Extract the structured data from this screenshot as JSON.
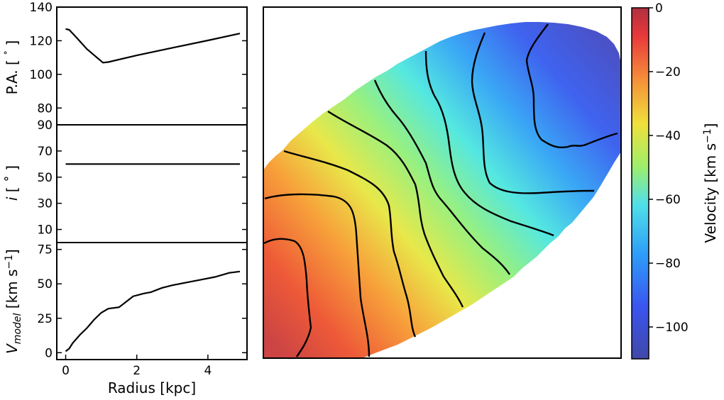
{
  "chart_data": [
    {
      "type": "line",
      "panel": "position-angle",
      "ylabel": "P.A. [ ˚ ]",
      "ylabel_main": "P.A. [ ",
      "ylabel_deg": "˚",
      "ylabel_close": " ]",
      "ylim": [
        70,
        140
      ],
      "yticks": [
        80,
        100,
        120,
        140
      ],
      "xlim": [
        -0.25,
        5.1
      ],
      "series": [
        {
          "x": [
            0.0,
            0.1,
            0.3,
            0.6,
            1.05,
            1.2,
            2.0,
            3.0,
            4.0,
            4.9
          ],
          "y": [
            127,
            126.5,
            122,
            115,
            107,
            107.3,
            111.3,
            115.8,
            120.2,
            124.3
          ]
        }
      ]
    },
    {
      "type": "line",
      "panel": "inclination",
      "ylabel_main": "i",
      "ylabel_rest": " [ ˚ ]",
      "ylim": [
        0,
        90
      ],
      "yticks": [
        10,
        30,
        50,
        70,
        90
      ],
      "xlim": [
        -0.25,
        5.1
      ],
      "series": [
        {
          "x": [
            0.0,
            4.9
          ],
          "y": [
            60,
            60
          ]
        }
      ]
    },
    {
      "type": "line",
      "panel": "rotation-curve",
      "ylabel_v": "V",
      "ylabel_sub": "model",
      "ylabel_units": " [km s",
      "ylabel_sup": "−1",
      "ylabel_close": "]",
      "xlabel": "Radius [kpc]",
      "ylim": [
        -5,
        80
      ],
      "yticks": [
        0,
        25,
        50,
        75
      ],
      "xticks": [
        0,
        2,
        4
      ],
      "xlim": [
        -0.25,
        5.1
      ],
      "series": [
        {
          "x": [
            0.0,
            0.1,
            0.2,
            0.4,
            0.6,
            0.8,
            1.0,
            1.2,
            1.5,
            1.7,
            1.9,
            2.2,
            2.4,
            2.7,
            3.0,
            3.4,
            3.8,
            4.2,
            4.6,
            4.9
          ],
          "y": [
            1,
            3,
            7,
            13,
            18,
            24,
            29,
            32,
            33,
            37,
            41,
            43,
            44,
            47,
            49,
            51,
            53,
            55,
            58,
            59
          ]
        }
      ]
    },
    {
      "type": "heatmap",
      "panel": "velocity-map",
      "description_of_data": "model line-of-sight velocity field (elliptical galaxy footprint) with black iso-velocity contours",
      "value_range": [
        -110,
        0
      ],
      "colormap": "jet (reversed)",
      "field": {
        "high_velocity_corner": "bottom-left",
        "low_velocity_corner": "top-right",
        "values_at_corners_km_s": {
          "bottom-left": -5,
          "top-right": -105
        }
      },
      "contour_count": 8
    }
  ],
  "colorbar": {
    "label_main": "Velocity [km s",
    "label_sup": "−1",
    "label_close": "]",
    "ticks": [
      0,
      -20,
      -40,
      -60,
      -80,
      -100
    ],
    "tick_labels": [
      "0",
      "−20",
      "−40",
      "−60",
      "−80",
      "−100"
    ],
    "range": [
      -110,
      0
    ]
  },
  "colors": {
    "line": "#000000",
    "high": "#d0453b",
    "low": "#4650c8"
  }
}
